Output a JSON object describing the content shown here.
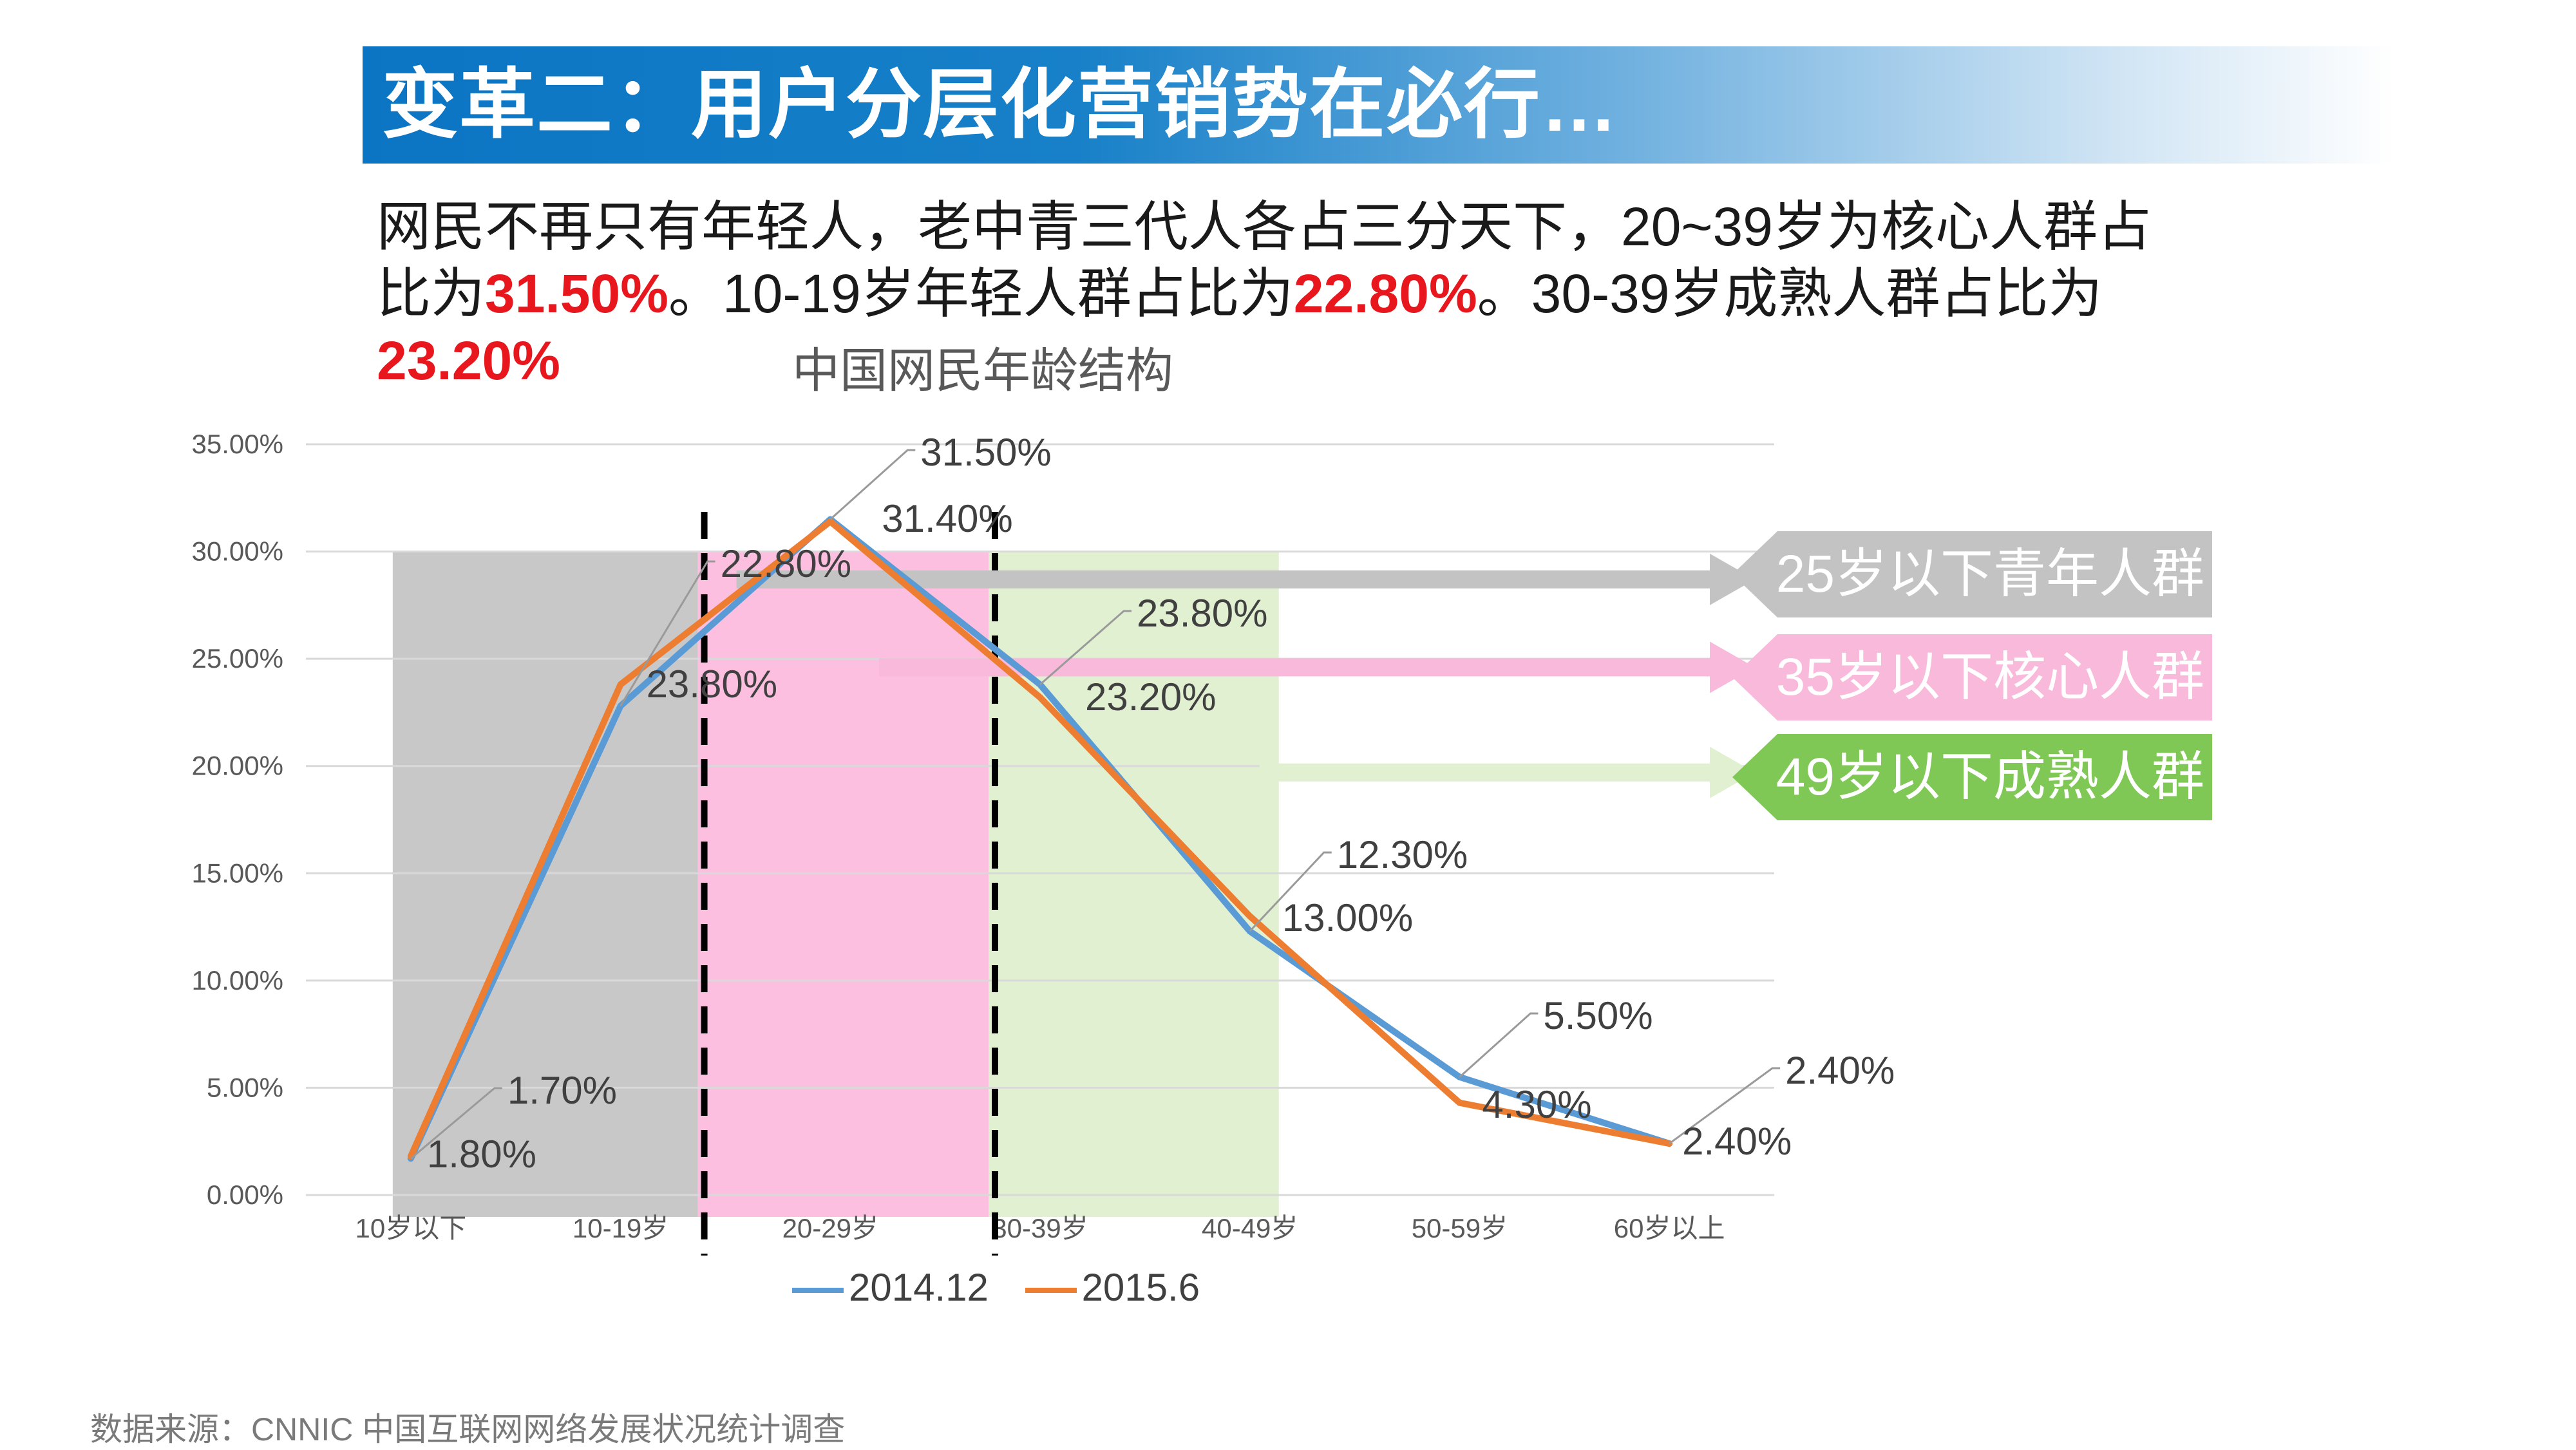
{
  "header": {
    "title": "变革二：用户分层化营销势在必行…"
  },
  "summary": {
    "part1": "网民不再只有年轻人，老中青三代人各占三分天下，20~39岁为核心人群占比为",
    "hl1": "31.50%",
    "part2": "。10-19岁年轻人群占比为",
    "hl2": "22.80%",
    "part3": "。30-39岁成熟人群占比为",
    "hl3": "23.20%"
  },
  "source": "数据来源：CNNIC 中国互联网网络发展状况统计调查",
  "chart_data": {
    "type": "line",
    "title": "中国网民年龄结构",
    "categories": [
      "10岁以下",
      "10-19岁",
      "20-29岁",
      "30-39岁",
      "40-49岁",
      "50-59岁",
      "60岁以上"
    ],
    "ylim": [
      0,
      35
    ],
    "yticks": [
      "0.00%",
      "5.00%",
      "10.00%",
      "15.00%",
      "20.00%",
      "25.00%",
      "30.00%",
      "35.00%"
    ],
    "grid": true,
    "legend_position": "bottom",
    "series": [
      {
        "name": "2014.12",
        "color": "#5b9bd5",
        "values": [
          1.7,
          22.8,
          31.5,
          23.8,
          12.3,
          5.5,
          2.4
        ],
        "labels": [
          "1.70%",
          "22.80%",
          "31.50%",
          "23.80%",
          "12.30%",
          "5.50%",
          "2.40%"
        ]
      },
      {
        "name": "2015.6",
        "color": "#ed7d31",
        "values": [
          1.8,
          23.8,
          31.4,
          23.2,
          13.0,
          4.3,
          2.4
        ],
        "labels": [
          "1.80%",
          "23.80%",
          "31.40%",
          "23.20%",
          "13.00%",
          "4.30%",
          "2.40%"
        ]
      }
    ],
    "bands": [
      {
        "color": "#c8c8c8"
      },
      {
        "color": "#fdbfe0"
      },
      {
        "color": "#e0f0d0"
      }
    ],
    "groups": [
      {
        "label": "25岁以下青年人群",
        "color": "#c3c3c3",
        "arrow_color": "#c3c3c3"
      },
      {
        "label": "35岁以下核心人群",
        "color": "#f9b9da",
        "arrow_color": "#f9b9da"
      },
      {
        "label": "49岁以下成熟人群",
        "color": "#80c856",
        "arrow_color": "#e0f0d0"
      }
    ]
  }
}
